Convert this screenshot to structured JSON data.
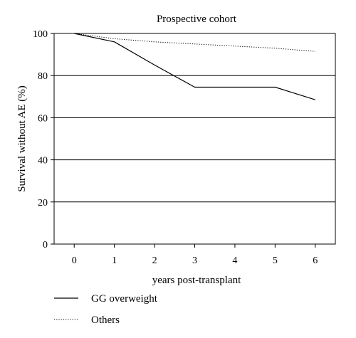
{
  "chart_data": {
    "type": "line",
    "title": "Prospective cohort",
    "xlabel": "years post-transplant",
    "ylabel": "Survival without AE (%)",
    "xlim": [
      -0.5,
      6.5
    ],
    "ylim": [
      0,
      100
    ],
    "xticks": [
      0,
      1,
      2,
      3,
      4,
      5,
      6
    ],
    "yticks": [
      0,
      20,
      40,
      60,
      80,
      100
    ],
    "grid": "horizontal",
    "legend_position": "bottom",
    "series": [
      {
        "name": "GG overweight",
        "style": "solid",
        "color": "#000000",
        "x": [
          0,
          1,
          2,
          3,
          4,
          5,
          6
        ],
        "y": [
          100,
          96,
          85,
          74.5,
          74.5,
          74.5,
          68.5
        ]
      },
      {
        "name": "Others",
        "style": "dotted",
        "color": "#000000",
        "x": [
          0,
          1,
          2,
          3,
          4,
          5,
          6
        ],
        "y": [
          100,
          97.5,
          96,
          95,
          94,
          93,
          91.5
        ]
      }
    ]
  }
}
